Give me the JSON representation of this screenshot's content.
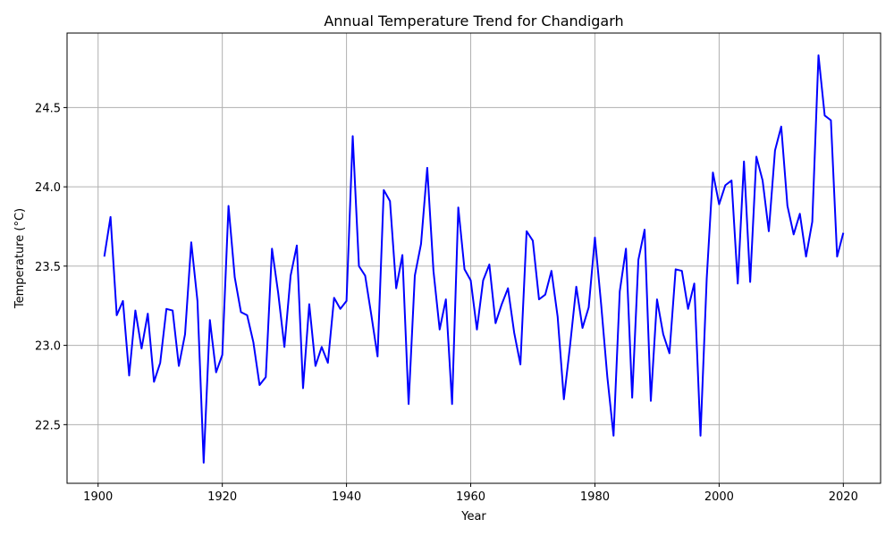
{
  "chart_data": {
    "type": "line",
    "title": "Annual Temperature Trend for Chandigarh",
    "xlabel": "Year",
    "ylabel": "Temperature (°C)",
    "xlim": [
      1895,
      2026
    ],
    "ylim": [
      22.13,
      24.97
    ],
    "xticks": [
      1900,
      1920,
      1940,
      1960,
      1980,
      2000,
      2020
    ],
    "yticks": [
      22.5,
      23.0,
      23.5,
      24.0,
      24.5
    ],
    "grid": true,
    "line_color": "#0000ff",
    "series": [
      {
        "x": [
          1901,
          1902,
          1903,
          1904,
          1905,
          1906,
          1907,
          1908,
          1909,
          1910,
          1911,
          1912,
          1913,
          1914,
          1915,
          1916,
          1917,
          1918,
          1919,
          1920,
          1921,
          1922,
          1923,
          1924,
          1925,
          1926,
          1927,
          1928,
          1929,
          1930,
          1931,
          1932,
          1933,
          1934,
          1935,
          1936,
          1937,
          1938,
          1939,
          1940,
          1941,
          1942,
          1943,
          1944,
          1945,
          1946,
          1947,
          1948,
          1949,
          1950,
          1951,
          1952,
          1953,
          1954,
          1955,
          1956,
          1957,
          1958,
          1959,
          1960,
          1961,
          1962,
          1963,
          1964,
          1965,
          1966,
          1967,
          1968,
          1969,
          1970,
          1971,
          1972,
          1973,
          1974,
          1975,
          1976,
          1977,
          1978,
          1979,
          1980,
          1981,
          1982,
          1983,
          1984,
          1985,
          1986,
          1987,
          1988,
          1989,
          1990,
          1991,
          1992,
          1993,
          1994,
          1995,
          1996,
          1997,
          1998,
          1999,
          2000,
          2001,
          2002,
          2003,
          2004,
          2005,
          2006,
          2007,
          2008,
          2009,
          2010,
          2011,
          2012,
          2013,
          2014,
          2015,
          2016,
          2017,
          2018,
          2019,
          2020
        ],
        "values": [
          23.56,
          23.81,
          23.19,
          23.28,
          22.81,
          23.22,
          22.98,
          23.2,
          22.77,
          22.89,
          23.23,
          23.22,
          22.87,
          23.07,
          23.65,
          23.28,
          22.26,
          23.16,
          22.83,
          22.94,
          23.88,
          23.43,
          23.21,
          23.19,
          23.02,
          22.75,
          22.8,
          23.61,
          23.33,
          22.99,
          23.44,
          23.63,
          22.73,
          23.26,
          22.87,
          22.99,
          22.89,
          23.3,
          23.23,
          23.28,
          24.32,
          23.5,
          23.44,
          23.19,
          22.93,
          23.98,
          23.91,
          23.36,
          23.57,
          22.63,
          23.44,
          23.64,
          24.12,
          23.47,
          23.1,
          23.29,
          22.63,
          23.87,
          23.48,
          23.41,
          23.1,
          23.41,
          23.51,
          23.14,
          23.26,
          23.36,
          23.08,
          22.88,
          23.72,
          23.66,
          23.29,
          23.32,
          23.47,
          23.18,
          22.66,
          23.0,
          23.37,
          23.11,
          23.24,
          23.68,
          23.26,
          22.8,
          22.43,
          23.34,
          23.61,
          22.67,
          23.54,
          23.73,
          22.65,
          23.29,
          23.07,
          22.95,
          23.48,
          23.47,
          23.23,
          23.39,
          22.43,
          23.42,
          24.09,
          23.89,
          24.01,
          24.04,
          23.39,
          24.16,
          23.4,
          24.19,
          24.04,
          23.72,
          24.23,
          24.38,
          23.88,
          23.7,
          23.83,
          23.56,
          23.78,
          24.83,
          24.45,
          24.42,
          23.56,
          23.71
        ]
      }
    ]
  }
}
